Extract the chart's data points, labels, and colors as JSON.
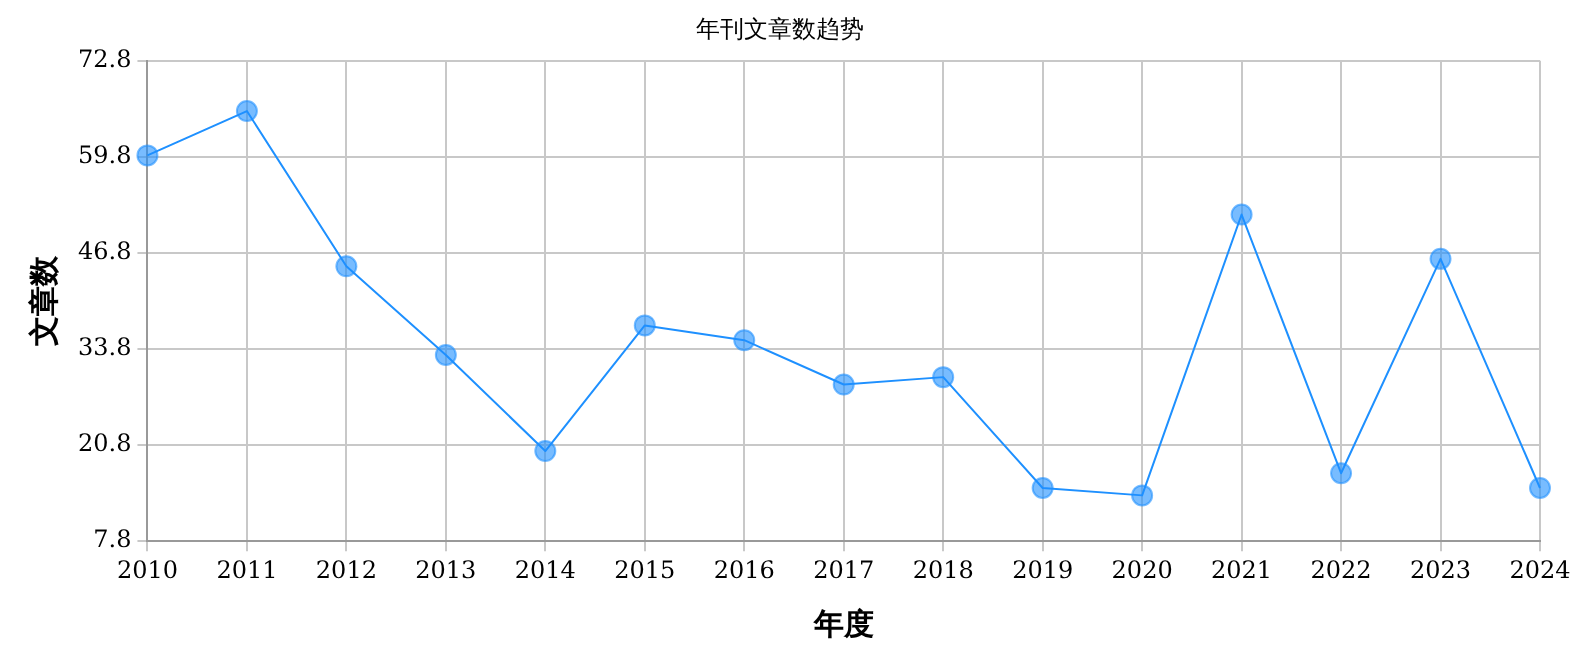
{
  "chart_data": {
    "type": "line",
    "title": "年刊文章数趋势",
    "xlabel": "年度",
    "ylabel": "文章数",
    "categories": [
      "2010",
      "2011",
      "2012",
      "2013",
      "2014",
      "2015",
      "2016",
      "2017",
      "2018",
      "2019",
      "2020",
      "2021",
      "2022",
      "2023",
      "2024"
    ],
    "series": [
      {
        "color": "#1e90ff",
        "values": [
          60,
          66,
          45,
          33,
          20,
          37,
          35,
          29,
          30,
          15,
          14,
          52,
          17,
          46,
          15
        ]
      }
    ],
    "ylim": [
      7.8,
      72.8
    ],
    "yticks": [
      7.8,
      20.8,
      33.8,
      46.8,
      59.8,
      72.8
    ],
    "grid": true,
    "marker": "circle",
    "line_style": "solid",
    "legend": false
  }
}
